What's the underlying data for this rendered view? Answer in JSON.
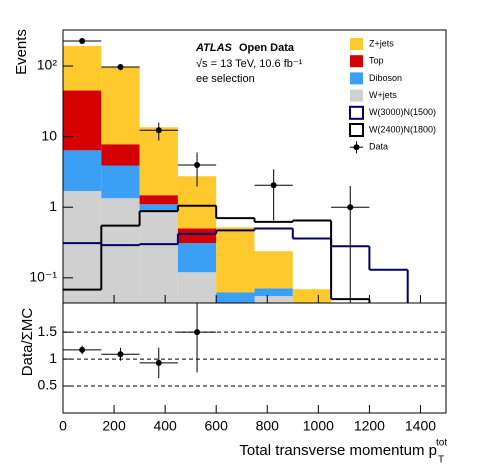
{
  "chart_data": [
    {
      "type": "stacked-histogram",
      "ylabel": "Events",
      "annotations": {
        "experiment": "ATLAS",
        "tag": "Open Data",
        "energy": "√s = 13 TeV, 10.6 fb⁻¹",
        "selection": "ee selection"
      },
      "log_y": true,
      "ylim": [
        0.044,
        324
      ],
      "yticks": [
        {
          "value": 0.1,
          "label": "10⁻¹"
        },
        1,
        10,
        {
          "value": 100,
          "label": "10²"
        }
      ],
      "bins": [
        0,
        150,
        300,
        450,
        600,
        750,
        900,
        1050,
        1200,
        1350,
        1500
      ],
      "stack": [
        {
          "name": "W+jets",
          "color": "#d0d0d0",
          "values": [
            1.7,
            1.34,
            0.85,
            0.12,
            0.035,
            0.055,
            0.035,
            0,
            0,
            0
          ]
        },
        {
          "name": "Diboson",
          "color": "#3a9ff5",
          "values": [
            4.7,
            2.56,
            0.25,
            0.19,
            0.027,
            0.016,
            0,
            0,
            0,
            0
          ]
        },
        {
          "name": "Top",
          "color": "#d50000",
          "values": [
            38.6,
            3.9,
            0.38,
            0.19,
            0,
            0,
            0,
            0,
            0,
            0
          ]
        },
        {
          "name": "Z+jets",
          "color": "#fec92c",
          "values": [
            147,
            89,
            12.1,
            2.25,
            0.458,
            0.167,
            0.034,
            0,
            0,
            0
          ]
        }
      ],
      "lines": [
        {
          "name": "W(3000)N(1500)",
          "color": "#000066",
          "values": [
            0.31,
            0.29,
            0.3,
            0.42,
            0.47,
            0.5,
            0.36,
            0.28,
            0.13,
            0.04
          ]
        },
        {
          "name": "W(2400)N(1800)",
          "color": "#000000",
          "values": [
            0.068,
            0.55,
            0.88,
            1.05,
            0.7,
            0.62,
            0.65,
            0.05,
            0.04,
            0.04
          ]
        }
      ],
      "data": {
        "name": "Data",
        "color": "#000000",
        "x": [
          75,
          225,
          375,
          525,
          825,
          1125
        ],
        "xerr": [
          75,
          75,
          75,
          75,
          75,
          75
        ],
        "values": [
          226,
          97,
          12.3,
          3.96,
          2.05,
          1
        ],
        "errors": [
          15,
          9.8,
          3.5,
          2,
          1.4,
          1
        ]
      },
      "legend": "top-right"
    },
    {
      "type": "ratio",
      "ylabel": "Data/ΣMC",
      "xlabel": "Total transverse momentum p",
      "xlabel_sup": "tot",
      "xlabel_sub": "T",
      "xlim": [
        0,
        1500
      ],
      "xticks": [
        0,
        200,
        400,
        600,
        800,
        1000,
        1200,
        1400
      ],
      "ylim": [
        0,
        2.04
      ],
      "yticks": [
        0.5,
        1,
        1.5
      ],
      "grid": true,
      "color": "#000000",
      "x": [
        75,
        225,
        375,
        525
      ],
      "xerr": [
        75,
        75,
        75,
        75
      ],
      "values": [
        1.17,
        1.09,
        0.93,
        1.5
      ],
      "errors": [
        0.08,
        0.12,
        0.28,
        0.75
      ]
    }
  ]
}
